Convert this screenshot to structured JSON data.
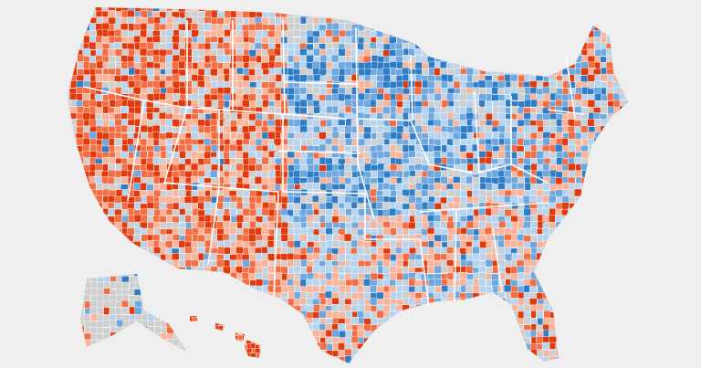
{
  "map": {
    "type": "choropleth",
    "region_level": "county",
    "background": "#efefef",
    "border_color": "#ffffff",
    "palette": {
      "strong_red": "#e23a0c",
      "red": "#f46d43",
      "light_red": "#f9b49c",
      "neutral": "#cfcfcf",
      "light_blue": "#b7d4ee",
      "blue": "#6ea8de",
      "strong_blue": "#2e7dc6"
    }
  }
}
